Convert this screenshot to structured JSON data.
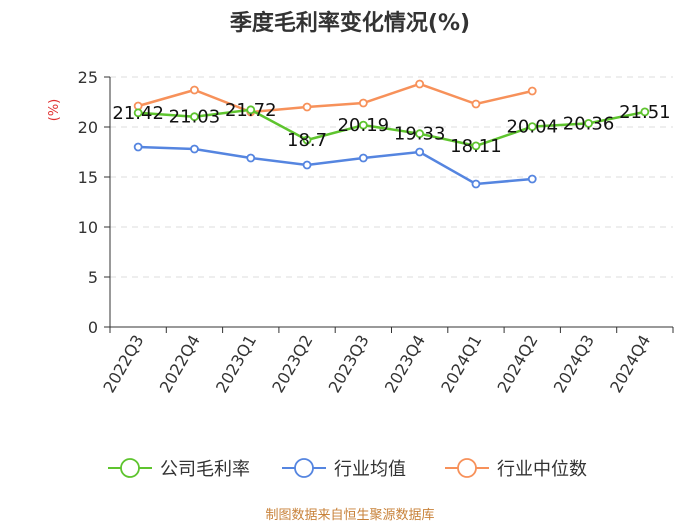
{
  "chart_data": {
    "type": "line",
    "title": "季度毛利率变化情况(%)",
    "ylabel": "(%)",
    "xlabel": "",
    "ylim": [
      0,
      25
    ],
    "yticks": [
      0,
      5,
      10,
      15,
      20,
      25
    ],
    "grid": true,
    "legend_position": "bottom",
    "categories": [
      "2022Q3",
      "2022Q4",
      "2023Q1",
      "2023Q2",
      "2023Q3",
      "2023Q4",
      "2024Q1",
      "2024Q2",
      "2024Q3",
      "2024Q4"
    ],
    "series": [
      {
        "name": "公司毛利率",
        "color": "#5ec42e",
        "labeled": true,
        "values": [
          21.42,
          21.03,
          21.72,
          18.7,
          20.19,
          19.33,
          18.11,
          20.04,
          20.36,
          21.51
        ]
      },
      {
        "name": "行业均值",
        "color": "#5585e0",
        "labeled": false,
        "values": [
          18.0,
          17.8,
          16.9,
          16.2,
          16.9,
          17.5,
          14.3,
          14.8,
          null,
          null
        ]
      },
      {
        "name": "行业中位数",
        "color": "#f7915a",
        "labeled": false,
        "values": [
          22.1,
          23.7,
          21.5,
          22.0,
          22.4,
          24.3,
          22.3,
          23.6,
          null,
          null
        ]
      }
    ]
  },
  "source": "制图数据来自恒生聚源数据库"
}
